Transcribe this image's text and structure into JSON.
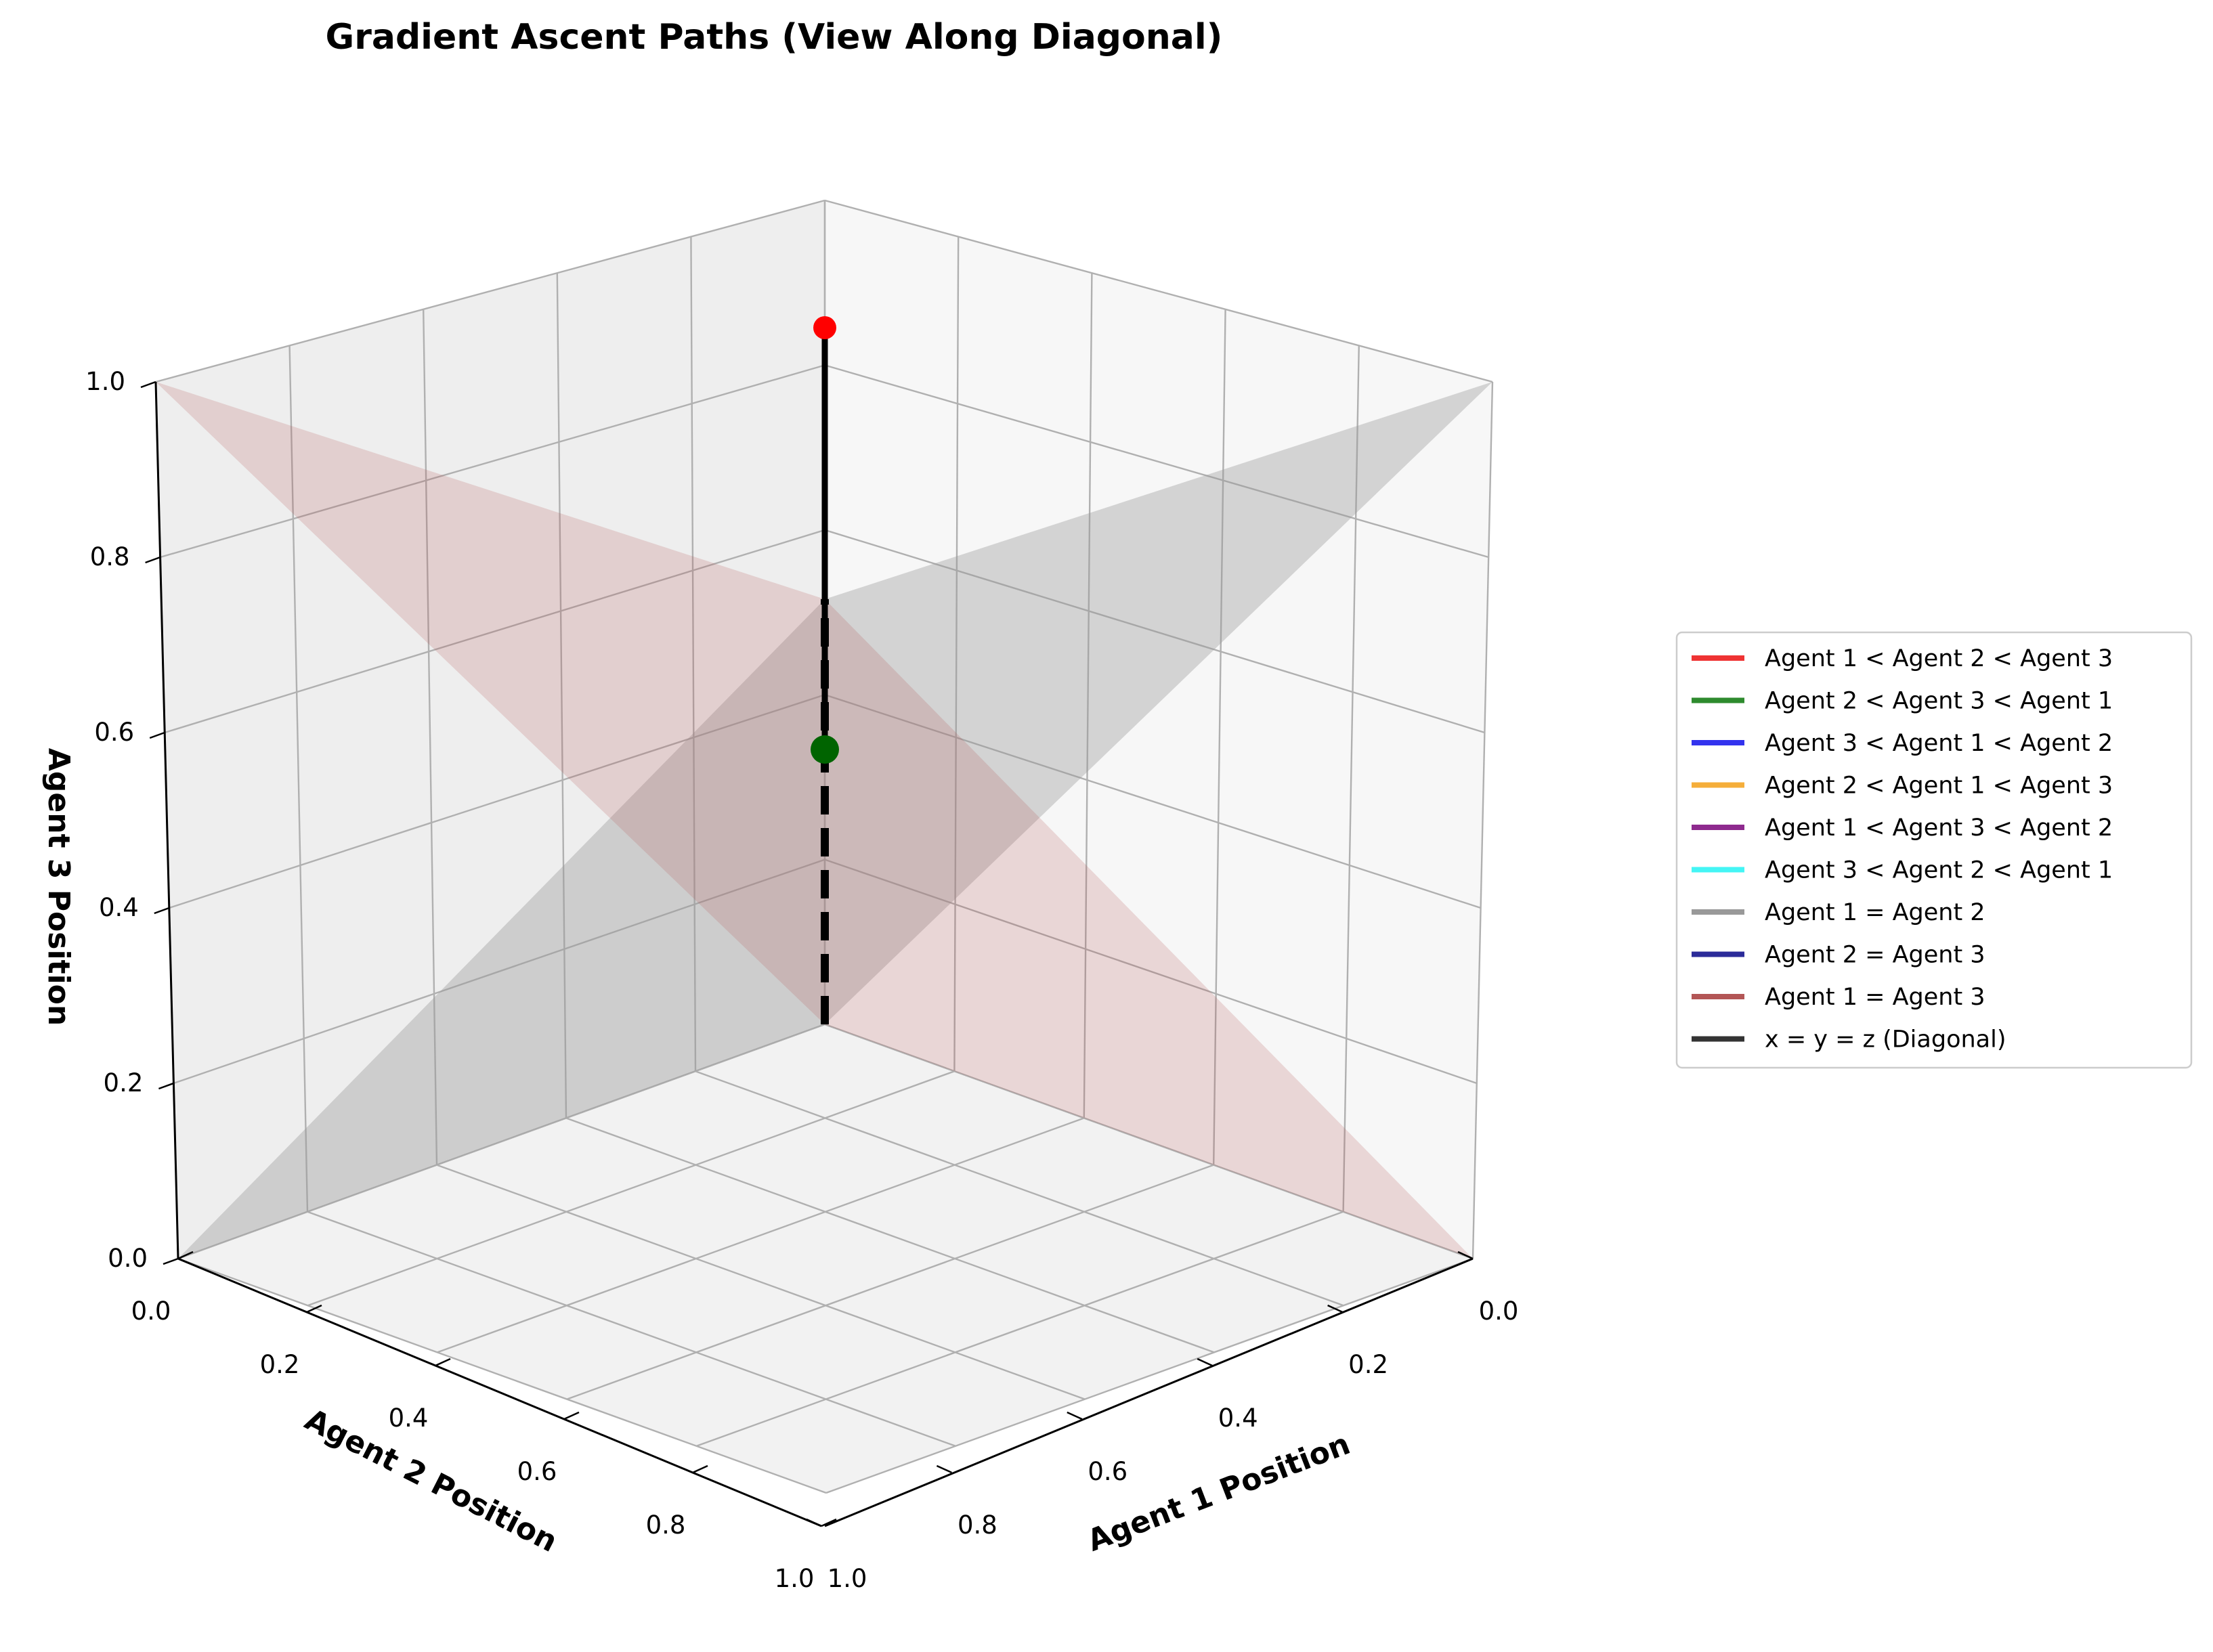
{
  "chart_data": {
    "type": "line3d",
    "title": "Gradient Ascent Paths (View Along Diagonal)",
    "axes": {
      "x": {
        "label": "Agent 1 Position",
        "range": [
          0,
          1
        ],
        "ticks": [
          "0.0",
          "0.2",
          "0.4",
          "0.6",
          "0.8",
          "1.0"
        ]
      },
      "y": {
        "label": "Agent 2 Position",
        "range": [
          0,
          1
        ],
        "ticks": [
          "0.0",
          "0.2",
          "0.4",
          "0.6",
          "0.8",
          "1.0"
        ]
      },
      "z": {
        "label": "Agent 3 Position",
        "range": [
          0,
          1
        ],
        "ticks": [
          "0.0",
          "0.2",
          "0.4",
          "0.6",
          "0.8",
          "1.0"
        ]
      }
    },
    "grid": true,
    "legend_position": "right",
    "legend": [
      {
        "label": "Agent 1 < Agent 2 < Agent 3",
        "color": "#ef3333"
      },
      {
        "label": "Agent 2 < Agent 3 < Agent 1",
        "color": "#2e8b2e"
      },
      {
        "label": "Agent 3 < Agent 1 < Agent 2",
        "color": "#3333ee"
      },
      {
        "label": "Agent 2 < Agent 1 < Agent 3",
        "color": "#f5ae3a"
      },
      {
        "label": "Agent 1 < Agent 3 < Agent 2",
        "color": "#8e2a8e"
      },
      {
        "label": "Agent 3 < Agent 2 < Agent 1",
        "color": "#44f5f5"
      },
      {
        "label": "Agent 1 = Agent 2",
        "color": "#999999"
      },
      {
        "label": "Agent 2 = Agent 3",
        "color": "#2b2b99"
      },
      {
        "label": "Agent 1 = Agent 3",
        "color": "#b35656"
      },
      {
        "label": "x = y = z (Diagonal)",
        "color": "#333333"
      }
    ],
    "surfaces": [
      {
        "name": "Agent 1 = Agent 2",
        "color": "#999999"
      },
      {
        "name": "Agent 1 = Agent 3",
        "color": "#b35656"
      }
    ],
    "diagonal": {
      "from": [
        0,
        0,
        0
      ],
      "to": [
        1,
        1,
        1
      ],
      "style": "dashed",
      "color": "#000000"
    },
    "path": {
      "points": [
        [
          0.6,
          0.6,
          0.6
        ],
        [
          1.0,
          1.0,
          1.0
        ]
      ],
      "color": "#000000"
    },
    "markers": [
      {
        "name": "start",
        "point": [
          0.6,
          0.6,
          0.6
        ],
        "color": "#006400"
      },
      {
        "name": "end",
        "point": [
          1.0,
          1.0,
          1.0
        ],
        "color": "#ff0000"
      }
    ]
  }
}
